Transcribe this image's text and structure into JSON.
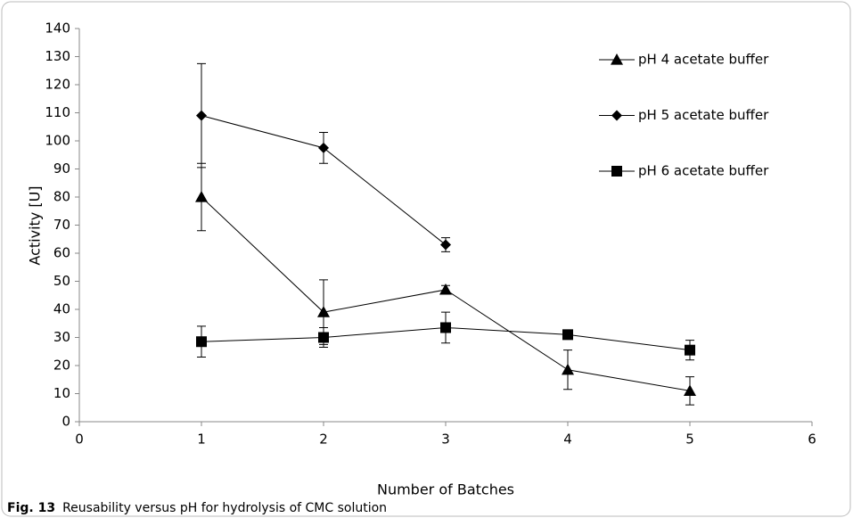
{
  "chart_data": {
    "type": "line",
    "x_label": "Number of Batches",
    "y_label": "Activity [U]",
    "figure_label": "Fig. 13",
    "caption": "Reusability versus pH for hydrolysis of CMC solution",
    "xlim": [
      0,
      6
    ],
    "xticks": [
      0,
      1,
      2,
      3,
      4,
      5,
      6
    ],
    "ylim": [
      0,
      140
    ],
    "yticks": [
      0,
      10,
      20,
      30,
      40,
      50,
      60,
      70,
      80,
      90,
      100,
      110,
      120,
      130,
      140
    ],
    "grid": false,
    "series": [
      {
        "name": "pH 4 acetate buffer",
        "color": "#000000",
        "marker": "triangle",
        "x": [
          1,
          2,
          3,
          4,
          5
        ],
        "values": [
          80,
          39,
          47,
          18.5,
          11
        ],
        "errors": [
          12,
          11.5,
          1.5,
          7,
          5
        ]
      },
      {
        "name": "pH 5 acetate buffer",
        "color": "#000000",
        "marker": "diamond",
        "x": [
          1,
          2,
          3
        ],
        "values": [
          109,
          97.5,
          63
        ],
        "errors": [
          18.5,
          5.5,
          2.5
        ]
      },
      {
        "name": "pH 6 acetate buffer",
        "color": "#000000",
        "marker": "square",
        "x": [
          1,
          2,
          3,
          4,
          5
        ],
        "values": [
          28.5,
          30,
          33.5,
          31,
          25.5
        ],
        "errors": [
          5.5,
          3.5,
          5.5,
          1,
          3.5
        ]
      }
    ]
  }
}
